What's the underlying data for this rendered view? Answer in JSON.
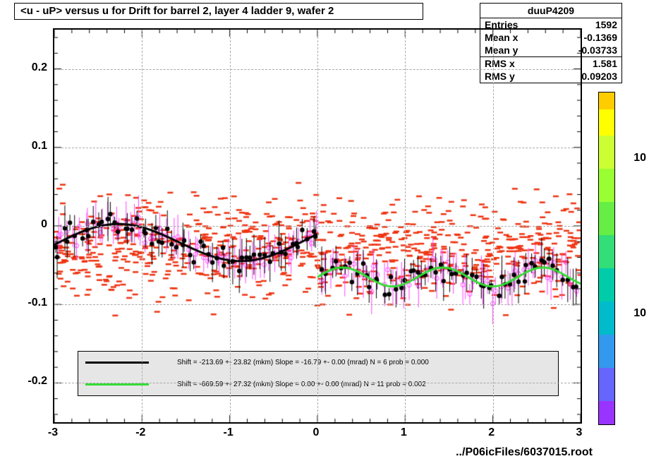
{
  "title": "<u - uP>       versus    u for Drift for barrel 2, layer 4 ladder 9, wafer 2",
  "stats": {
    "name": "duuP4209",
    "entries": "1592",
    "mean_x_label": "Mean x",
    "mean_x": "-0.1369",
    "mean_y_label": "Mean y",
    "mean_y": "-0.03733",
    "rms_x_label": "RMS x",
    "rms_x": "1.581",
    "rms_y_label": "RMS y",
    "rms_y": "0.09203"
  },
  "plot": {
    "xlim": [
      -3,
      3
    ],
    "ylim": [
      -0.25,
      0.25
    ],
    "xticks": [
      -3,
      -2,
      -1,
      0,
      1,
      2,
      3
    ],
    "yticks": [
      -0.2,
      -0.1,
      0,
      0.1,
      0.2
    ],
    "grid_color": "#aaaaaa",
    "scatter_color": "#ee3311",
    "scatter_count": 900,
    "black_points_count": 120,
    "magenta_points_count": 120,
    "black_curve": {
      "color": "#000000",
      "width": 3,
      "xrange": [
        -3,
        0
      ],
      "amp": 0.025,
      "freq": 2.2,
      "offset": -0.018,
      "slope": 0.002
    },
    "green_curve": {
      "color": "#33dd33",
      "width": 3,
      "xrange": [
        0,
        3
      ],
      "amp": 0.012,
      "freq": 5.5,
      "offset": -0.065,
      "slope": 0.0
    }
  },
  "fit_legend": {
    "bg": "#e6e6e6",
    "rows": [
      {
        "color": "#000000",
        "text": "Shift =  -213.69 +- 23.82 (mkm) Slope =   -16.79 +- 0.00 (mrad)  N = 6 prob = 0.000"
      },
      {
        "color": "#33dd33",
        "text": "Shift =  -669.59 +- 27.32 (mkm) Slope =      0.00 +- 0.00 (mrad)  N = 11 prob = 0.002"
      }
    ]
  },
  "colorbar": {
    "segments": [
      {
        "color": "#ffcc00",
        "h": 5
      },
      {
        "color": "#ffff00",
        "h": 8
      },
      {
        "color": "#ccff33",
        "h": 10
      },
      {
        "color": "#99ff33",
        "h": 10
      },
      {
        "color": "#66ee44",
        "h": 10
      },
      {
        "color": "#33dd77",
        "h": 10
      },
      {
        "color": "#00ccaa",
        "h": 10
      },
      {
        "color": "#00bbcc",
        "h": 10
      },
      {
        "color": "#3399ee",
        "h": 10
      },
      {
        "color": "#6666ff",
        "h": 10
      },
      {
        "color": "#9933ff",
        "h": 7
      }
    ],
    "labels": [
      {
        "text": "10",
        "y": 215
      },
      {
        "text": "10",
        "y": 435
      }
    ]
  },
  "file_label": "../P06icFiles/6037015.root",
  "colors": {
    "border": "#000000",
    "bg": "#ffffff"
  }
}
